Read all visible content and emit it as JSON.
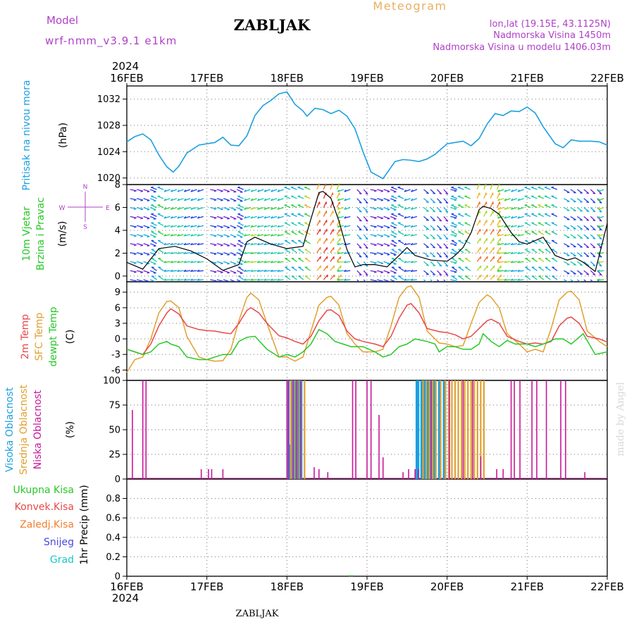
{
  "header": {
    "model_label": "Model",
    "model_name": "wrf-nmm_v3.9.1  e1km",
    "station": "ZABLJAK",
    "meteogram": "Meteogram",
    "lonlat": "lon,lat (19.15E, 43.1125N)",
    "altitude": "Nadmorska Visina 1450m",
    "model_altitude": "Nadmorska Visina u modelu 1406.03m",
    "year": "2024",
    "footer_station": "ZABLJAK",
    "watermark": "made by Angel"
  },
  "colors": {
    "pressure": "#1ca0e0",
    "temp2m": "#e84848",
    "sfc": "#e0a030",
    "dewpt": "#28c828",
    "high_cloud": "#1ca0e0",
    "mid_cloud": "#e0a030",
    "low_cloud": "#c8189a",
    "wind_label": "#28c828",
    "wind_dir": "#b040c8",
    "precip_total": "#28c828",
    "precip_conv": "#e84848",
    "precip_frozen": "#f08030",
    "precip_snow": "#4848e0",
    "precip_grad": "#18c8c8"
  },
  "chart_data": [
    {
      "id": "pressure",
      "type": "line",
      "ylabel": [
        "Pritisak na nivou mora",
        "(hPa)"
      ],
      "x_ticks": [
        "16FEB",
        "17FEB",
        "18FEB",
        "19FEB",
        "20FEB",
        "21FEB",
        "22FEB"
      ],
      "ylim": [
        1019,
        1034
      ],
      "yticks": [
        1020,
        1024,
        1028,
        1032
      ],
      "grid": true,
      "x_days": [
        0,
        0.1,
        0.2,
        0.3,
        0.4,
        0.5,
        0.58,
        0.65,
        0.75,
        0.9,
        1.0,
        1.1,
        1.2,
        1.3,
        1.4,
        1.5,
        1.6,
        1.7,
        1.8,
        1.9,
        2.0,
        2.1,
        2.2,
        2.25,
        2.35,
        2.45,
        2.55,
        2.65,
        2.75,
        2.85,
        2.95,
        3.05,
        3.2,
        3.35,
        3.45,
        3.55,
        3.65,
        3.75,
        3.85,
        4.0,
        4.2,
        4.3,
        4.4,
        4.5,
        4.6,
        4.7,
        4.8,
        4.9,
        5.0,
        5.1,
        5.2,
        5.35,
        5.45,
        5.55,
        5.65,
        5.8,
        5.9,
        6.0
      ],
      "values": [
        1025.5,
        1026.3,
        1026.7,
        1025.8,
        1023.5,
        1021.7,
        1020.9,
        1021.8,
        1023.8,
        1025.0,
        1025.2,
        1025.4,
        1026.2,
        1025.0,
        1024.9,
        1026.4,
        1029.5,
        1031.0,
        1031.8,
        1032.8,
        1033.1,
        1031.2,
        1030.2,
        1029.4,
        1030.6,
        1030.4,
        1029.8,
        1030.3,
        1029.4,
        1027.5,
        1024.0,
        1020.9,
        1019.9,
        1022.5,
        1022.8,
        1022.7,
        1022.5,
        1022.9,
        1023.6,
        1025.2,
        1025.6,
        1024.9,
        1026.0,
        1028.2,
        1029.8,
        1029.5,
        1030.2,
        1030.1,
        1030.8,
        1029.9,
        1027.8,
        1025.2,
        1024.6,
        1025.8,
        1025.6,
        1025.6,
        1025.5,
        1025.0
      ]
    },
    {
      "id": "wind",
      "type": "line",
      "ylabel": [
        "10m Vjetar",
        "Brzina i Pravac",
        "(m/s)"
      ],
      "compass": [
        "N",
        "W",
        "E",
        "S"
      ],
      "ylim": [
        -0.5,
        8
      ],
      "yticks": [
        0,
        2,
        4,
        6,
        8
      ],
      "grid": true,
      "x_days": [
        0,
        0.2,
        0.4,
        0.6,
        0.8,
        1.0,
        1.2,
        1.4,
        1.5,
        1.6,
        1.8,
        2.0,
        2.2,
        2.3,
        2.4,
        2.45,
        2.55,
        2.65,
        2.75,
        2.85,
        2.95,
        3.1,
        3.25,
        3.4,
        3.5,
        3.6,
        3.8,
        4.0,
        4.1,
        4.2,
        4.3,
        4.4,
        4.45,
        4.55,
        4.65,
        4.8,
        4.9,
        5.0,
        5.2,
        5.35,
        5.5,
        5.6,
        5.7,
        5.85,
        6.0
      ],
      "speed": [
        1.2,
        0.6,
        2.4,
        2.6,
        2.2,
        1.5,
        0.5,
        1.0,
        3.0,
        3.4,
        2.8,
        2.4,
        2.6,
        5.0,
        7.3,
        7.4,
        6.8,
        4.8,
        2.3,
        0.8,
        1.0,
        1.0,
        0.8,
        1.8,
        2.5,
        1.8,
        1.4,
        1.3,
        1.8,
        2.5,
        3.8,
        5.8,
        6.1,
        5.9,
        5.4,
        3.8,
        3.0,
        2.8,
        3.4,
        1.8,
        1.4,
        1.6,
        1.2,
        0.4,
        4.6
      ]
    },
    {
      "id": "temperature",
      "type": "line",
      "ylabel": [
        "2m Temp",
        "SFC Temp",
        "dewpt Temp",
        "(C)"
      ],
      "ylim": [
        -8,
        11
      ],
      "yticks": [
        -6,
        -3,
        0,
        3,
        6,
        9
      ],
      "grid": true,
      "series": [
        {
          "name": "2m Temp",
          "x": [
            0,
            0.1,
            0.2,
            0.3,
            0.4,
            0.5,
            0.55,
            0.65,
            0.75,
            0.9,
            1.0,
            1.1,
            1.2,
            1.3,
            1.4,
            1.5,
            1.55,
            1.65,
            1.75,
            1.9,
            2.0,
            2.1,
            2.2,
            2.3,
            2.4,
            2.5,
            2.55,
            2.65,
            2.75,
            2.85,
            2.95,
            3.1,
            3.2,
            3.3,
            3.4,
            3.5,
            3.55,
            3.65,
            3.75,
            3.9,
            4.0,
            4.1,
            4.2,
            4.3,
            4.4,
            4.5,
            4.55,
            4.65,
            4.75,
            4.9,
            5.0,
            5.1,
            5.2,
            5.3,
            5.4,
            5.5,
            5.55,
            5.65,
            5.75,
            5.9,
            6.0
          ],
          "values": [
            -2.0,
            -2.5,
            -3.0,
            -1.0,
            2.5,
            5.0,
            5.8,
            4.8,
            2.5,
            1.8,
            1.6,
            1.5,
            1.2,
            1.0,
            3.0,
            5.5,
            6.0,
            5.0,
            3.0,
            0.6,
            0.2,
            -0.5,
            -1.0,
            0.5,
            3.5,
            5.5,
            5.6,
            4.5,
            1.5,
            0.0,
            -0.5,
            -1.0,
            -1.5,
            0.5,
            4.0,
            6.5,
            6.8,
            5.0,
            2.0,
            1.4,
            1.2,
            0.8,
            0.0,
            0.5,
            2.0,
            3.5,
            3.8,
            3.0,
            0.5,
            -0.5,
            -1.0,
            -0.8,
            -1.0,
            -0.5,
            2.5,
            4.0,
            4.2,
            3.0,
            0.5,
            0.0,
            -0.6
          ]
        },
        {
          "name": "SFC Temp",
          "x": [
            0,
            0.1,
            0.2,
            0.3,
            0.4,
            0.5,
            0.55,
            0.65,
            0.75,
            0.9,
            1.0,
            1.1,
            1.2,
            1.3,
            1.4,
            1.5,
            1.55,
            1.65,
            1.75,
            1.9,
            2.0,
            2.1,
            2.2,
            2.3,
            2.4,
            2.5,
            2.55,
            2.65,
            2.75,
            2.85,
            2.95,
            3.1,
            3.2,
            3.3,
            3.4,
            3.5,
            3.55,
            3.65,
            3.75,
            3.9,
            4.0,
            4.1,
            4.2,
            4.3,
            4.4,
            4.5,
            4.55,
            4.65,
            4.75,
            4.9,
            5.0,
            5.1,
            5.2,
            5.3,
            5.4,
            5.5,
            5.55,
            5.65,
            5.75,
            5.9,
            6.0
          ],
          "values": [
            -6.5,
            -4.0,
            -3.5,
            0.0,
            5.0,
            7.2,
            7.3,
            6.0,
            0.5,
            -3.5,
            -4.0,
            -4.3,
            -4.2,
            -2.0,
            3.5,
            8.0,
            8.8,
            7.5,
            3.0,
            -3.5,
            -3.5,
            -4.3,
            -3.5,
            1.5,
            6.5,
            8.0,
            8.2,
            6.5,
            1.0,
            -1.0,
            -2.5,
            -2.5,
            -2.0,
            2.5,
            8.0,
            10.0,
            10.2,
            8.0,
            1.5,
            -0.8,
            -1.0,
            -1.5,
            -1.3,
            3.0,
            7.0,
            8.5,
            8.0,
            6.0,
            1.0,
            -1.0,
            -2.5,
            -2.0,
            -2.5,
            2.0,
            7.5,
            9.0,
            9.2,
            7.5,
            1.5,
            -0.5,
            -1.5
          ]
        },
        {
          "name": "dewpt Temp",
          "x": [
            0,
            0.1,
            0.2,
            0.3,
            0.4,
            0.5,
            0.55,
            0.65,
            0.75,
            0.9,
            1.0,
            1.1,
            1.2,
            1.3,
            1.4,
            1.5,
            1.6,
            1.75,
            1.9,
            2.0,
            2.1,
            2.2,
            2.3,
            2.4,
            2.5,
            2.6,
            2.7,
            2.8,
            2.95,
            3.1,
            3.2,
            3.3,
            3.4,
            3.5,
            3.6,
            3.75,
            3.85,
            3.9,
            4.0,
            4.1,
            4.2,
            4.3,
            4.4,
            4.45,
            4.55,
            4.65,
            4.75,
            4.85,
            5.0,
            5.1,
            5.2,
            5.35,
            5.45,
            5.55,
            5.7,
            5.85,
            6.0
          ],
          "values": [
            -2.0,
            -2.5,
            -3.0,
            -2.5,
            -1.0,
            -0.5,
            -1.0,
            -1.5,
            -3.5,
            -4.0,
            -4.0,
            -3.5,
            -3.0,
            -3.0,
            -0.5,
            0.3,
            0.5,
            -2.0,
            -3.5,
            -3.0,
            -3.5,
            -2.5,
            -1.0,
            1.8,
            1.0,
            -0.5,
            -1.0,
            -1.5,
            -1.5,
            -2.5,
            -3.5,
            -3.0,
            -1.5,
            -1.0,
            0.0,
            -0.5,
            -1.0,
            -2.5,
            -1.5,
            -1.5,
            -2.0,
            -2.0,
            -1.0,
            1.0,
            -0.5,
            -1.5,
            -0.3,
            -1.0,
            -1.0,
            -1.5,
            -1.0,
            0.0,
            0.0,
            -1.0,
            1.0,
            -3.0,
            -2.5
          ]
        }
      ]
    },
    {
      "id": "cloud",
      "type": "bar",
      "ylabel": [
        "Visoka Oblacnost",
        "Srednja Oblacnost",
        "Niska Oblacnost",
        "(%)"
      ],
      "ylim": [
        0,
        100
      ],
      "yticks": [
        0,
        25,
        50,
        75,
        100
      ],
      "grid": true,
      "series": [
        {
          "name": "Visoka Oblacnost",
          "x": [
            2.02,
            2.04,
            2.06,
            2.1,
            2.14,
            2.18,
            3.62,
            3.64,
            3.68,
            3.72,
            3.76,
            3.8,
            3.84,
            3.9,
            3.96
          ],
          "values": [
            100,
            35,
            100,
            100,
            100,
            100,
            100,
            100,
            100,
            100,
            100,
            100,
            100,
            100,
            100
          ]
        },
        {
          "name": "Srednja Oblacnost",
          "x": [
            2.05,
            2.09,
            2.12,
            2.16,
            2.22,
            3.7,
            3.74,
            3.78,
            3.82,
            3.86,
            3.92,
            3.98,
            4.02,
            4.06,
            4.1,
            4.14,
            4.18,
            4.22,
            4.26,
            4.3,
            4.34,
            4.38,
            4.42,
            4.46
          ],
          "values": [
            100,
            100,
            100,
            100,
            100,
            100,
            100,
            100,
            100,
            100,
            100,
            100,
            100,
            100,
            100,
            100,
            100,
            100,
            100,
            100,
            100,
            100,
            100,
            100
          ]
        },
        {
          "name": "Niska Oblacnost",
          "x": [
            0.07,
            0.2,
            0.24,
            0.93,
            1.02,
            1.06,
            1.2,
            2.0,
            2.02,
            2.08,
            2.12,
            2.17,
            2.34,
            2.4,
            2.51,
            2.82,
            2.86,
            3.0,
            3.05,
            3.15,
            3.2,
            3.45,
            3.52,
            3.6,
            3.64,
            3.8,
            4.03,
            4.2,
            4.32,
            4.42,
            4.62,
            4.7,
            4.8,
            4.84,
            4.91,
            5.06,
            5.12,
            5.24,
            5.42,
            5.48,
            5.72
          ],
          "values": [
            70,
            100,
            100,
            10,
            10,
            10,
            10,
            100,
            100,
            100,
            100,
            100,
            12,
            10,
            7,
            100,
            100,
            100,
            100,
            65,
            22,
            7,
            10,
            10,
            10,
            100,
            100,
            100,
            100,
            23,
            10,
            10,
            100,
            100,
            100,
            100,
            100,
            100,
            100,
            100,
            7
          ]
        }
      ]
    },
    {
      "id": "precip",
      "type": "bar",
      "ylabel": [
        "1hr Precip (mm)"
      ],
      "legend": [
        "Ukupna  Kisa",
        "Konvek.Kisa",
        "Zaledj.Kisa",
        "Snijeg",
        "Grad"
      ],
      "ylim": [
        0,
        1
      ],
      "yticks": [
        0,
        0.2,
        0.4,
        0.6,
        0.8
      ],
      "grid": true,
      "series": [
        {
          "name": "Ukupna  Kisa",
          "x": [
            2.78,
            2.8,
            2.82
          ],
          "values": [
            0.005,
            0.01,
            0.005
          ]
        }
      ]
    }
  ]
}
